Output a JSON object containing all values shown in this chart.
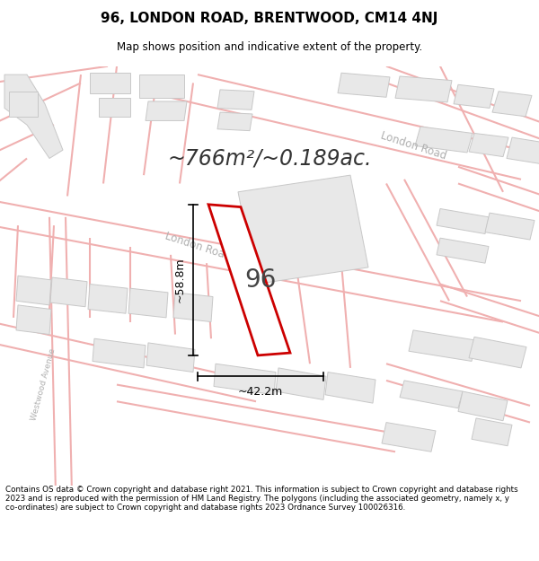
{
  "title": "96, LONDON ROAD, BRENTWOOD, CM14 4NJ",
  "subtitle": "Map shows position and indicative extent of the property.",
  "area_text": "~766m²/~0.189ac.",
  "number_label": "96",
  "dim_width": "~42.2m",
  "dim_height": "~58.8m",
  "footer": "Contains OS data © Crown copyright and database right 2021. This information is subject to Crown copyright and database rights 2023 and is reproduced with the permission of HM Land Registry. The polygons (including the associated geometry, namely x, y co-ordinates) are subject to Crown copyright and database rights 2023 Ordnance Survey 100026316.",
  "bg_color": "#ffffff",
  "plot_fill": "#ffffff",
  "plot_edge": "#cc0000",
  "road_color": "#f0b0b0",
  "road_lw": 1.5,
  "block_fill": "#e8e8e8",
  "block_edge": "#c8c8c8",
  "block_lw": 0.7,
  "title_color": "#000000",
  "footer_color": "#000000",
  "london_road_label_color": "#b0b0b0",
  "westwood_label_color": "#b0b0b0"
}
